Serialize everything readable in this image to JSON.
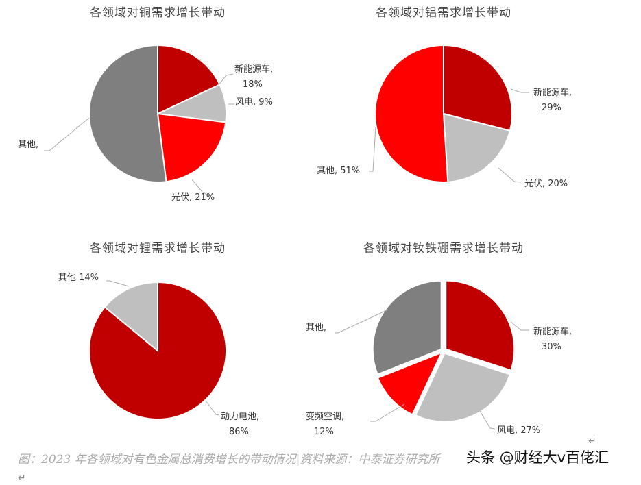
{
  "chart_data": [
    {
      "type": "pie",
      "title": "各领域对铜需求增长带动",
      "slices": [
        {
          "label": "新能源车",
          "value": 18,
          "text": "18%",
          "color": "#C00000"
        },
        {
          "label": "风电",
          "value": 9,
          "text": "9%",
          "color": "#BFBFBF"
        },
        {
          "label": "光伏",
          "value": 21,
          "text": "21%",
          "color": "#FF0000"
        },
        {
          "label": "其他",
          "value": 52,
          "text": "",
          "color": "#7F7F7F"
        }
      ]
    },
    {
      "type": "pie",
      "title": "各领域对铝需求增长带动",
      "slices": [
        {
          "label": "新能源车",
          "value": 29,
          "text": "29%",
          "color": "#C00000"
        },
        {
          "label": "光伏",
          "value": 20,
          "text": "20%",
          "color": "#BFBFBF"
        },
        {
          "label": "其他",
          "value": 51,
          "text": "51%",
          "color": "#FF0000"
        }
      ]
    },
    {
      "type": "pie",
      "title": "各领域对锂需求增长带动",
      "slices": [
        {
          "label": "动力电池",
          "value": 86,
          "text": "86%",
          "color": "#C00000"
        },
        {
          "label": "其他",
          "value": 14,
          "text": "14%",
          "color": "#BFBFBF"
        }
      ]
    },
    {
      "type": "pie",
      "title": "各领域对钕铁硼需求增长带动",
      "slices": [
        {
          "label": "新能源车",
          "value": 30,
          "text": "30%",
          "color": "#C00000"
        },
        {
          "label": "风电",
          "value": 27,
          "text": "27%",
          "color": "#BFBFBF"
        },
        {
          "label": "变频空调",
          "value": 12,
          "text": "12%",
          "color": "#FF0000"
        },
        {
          "label": "其他",
          "value": 31,
          "text": "",
          "color": "#7F7F7F"
        }
      ]
    }
  ],
  "caption": "图：2023 年各领域对有色金属总消费增长的带动情况|资料来源：中泰证券研究所",
  "watermark": "头条 @财经大v百佬汇",
  "return_mark": "↵"
}
